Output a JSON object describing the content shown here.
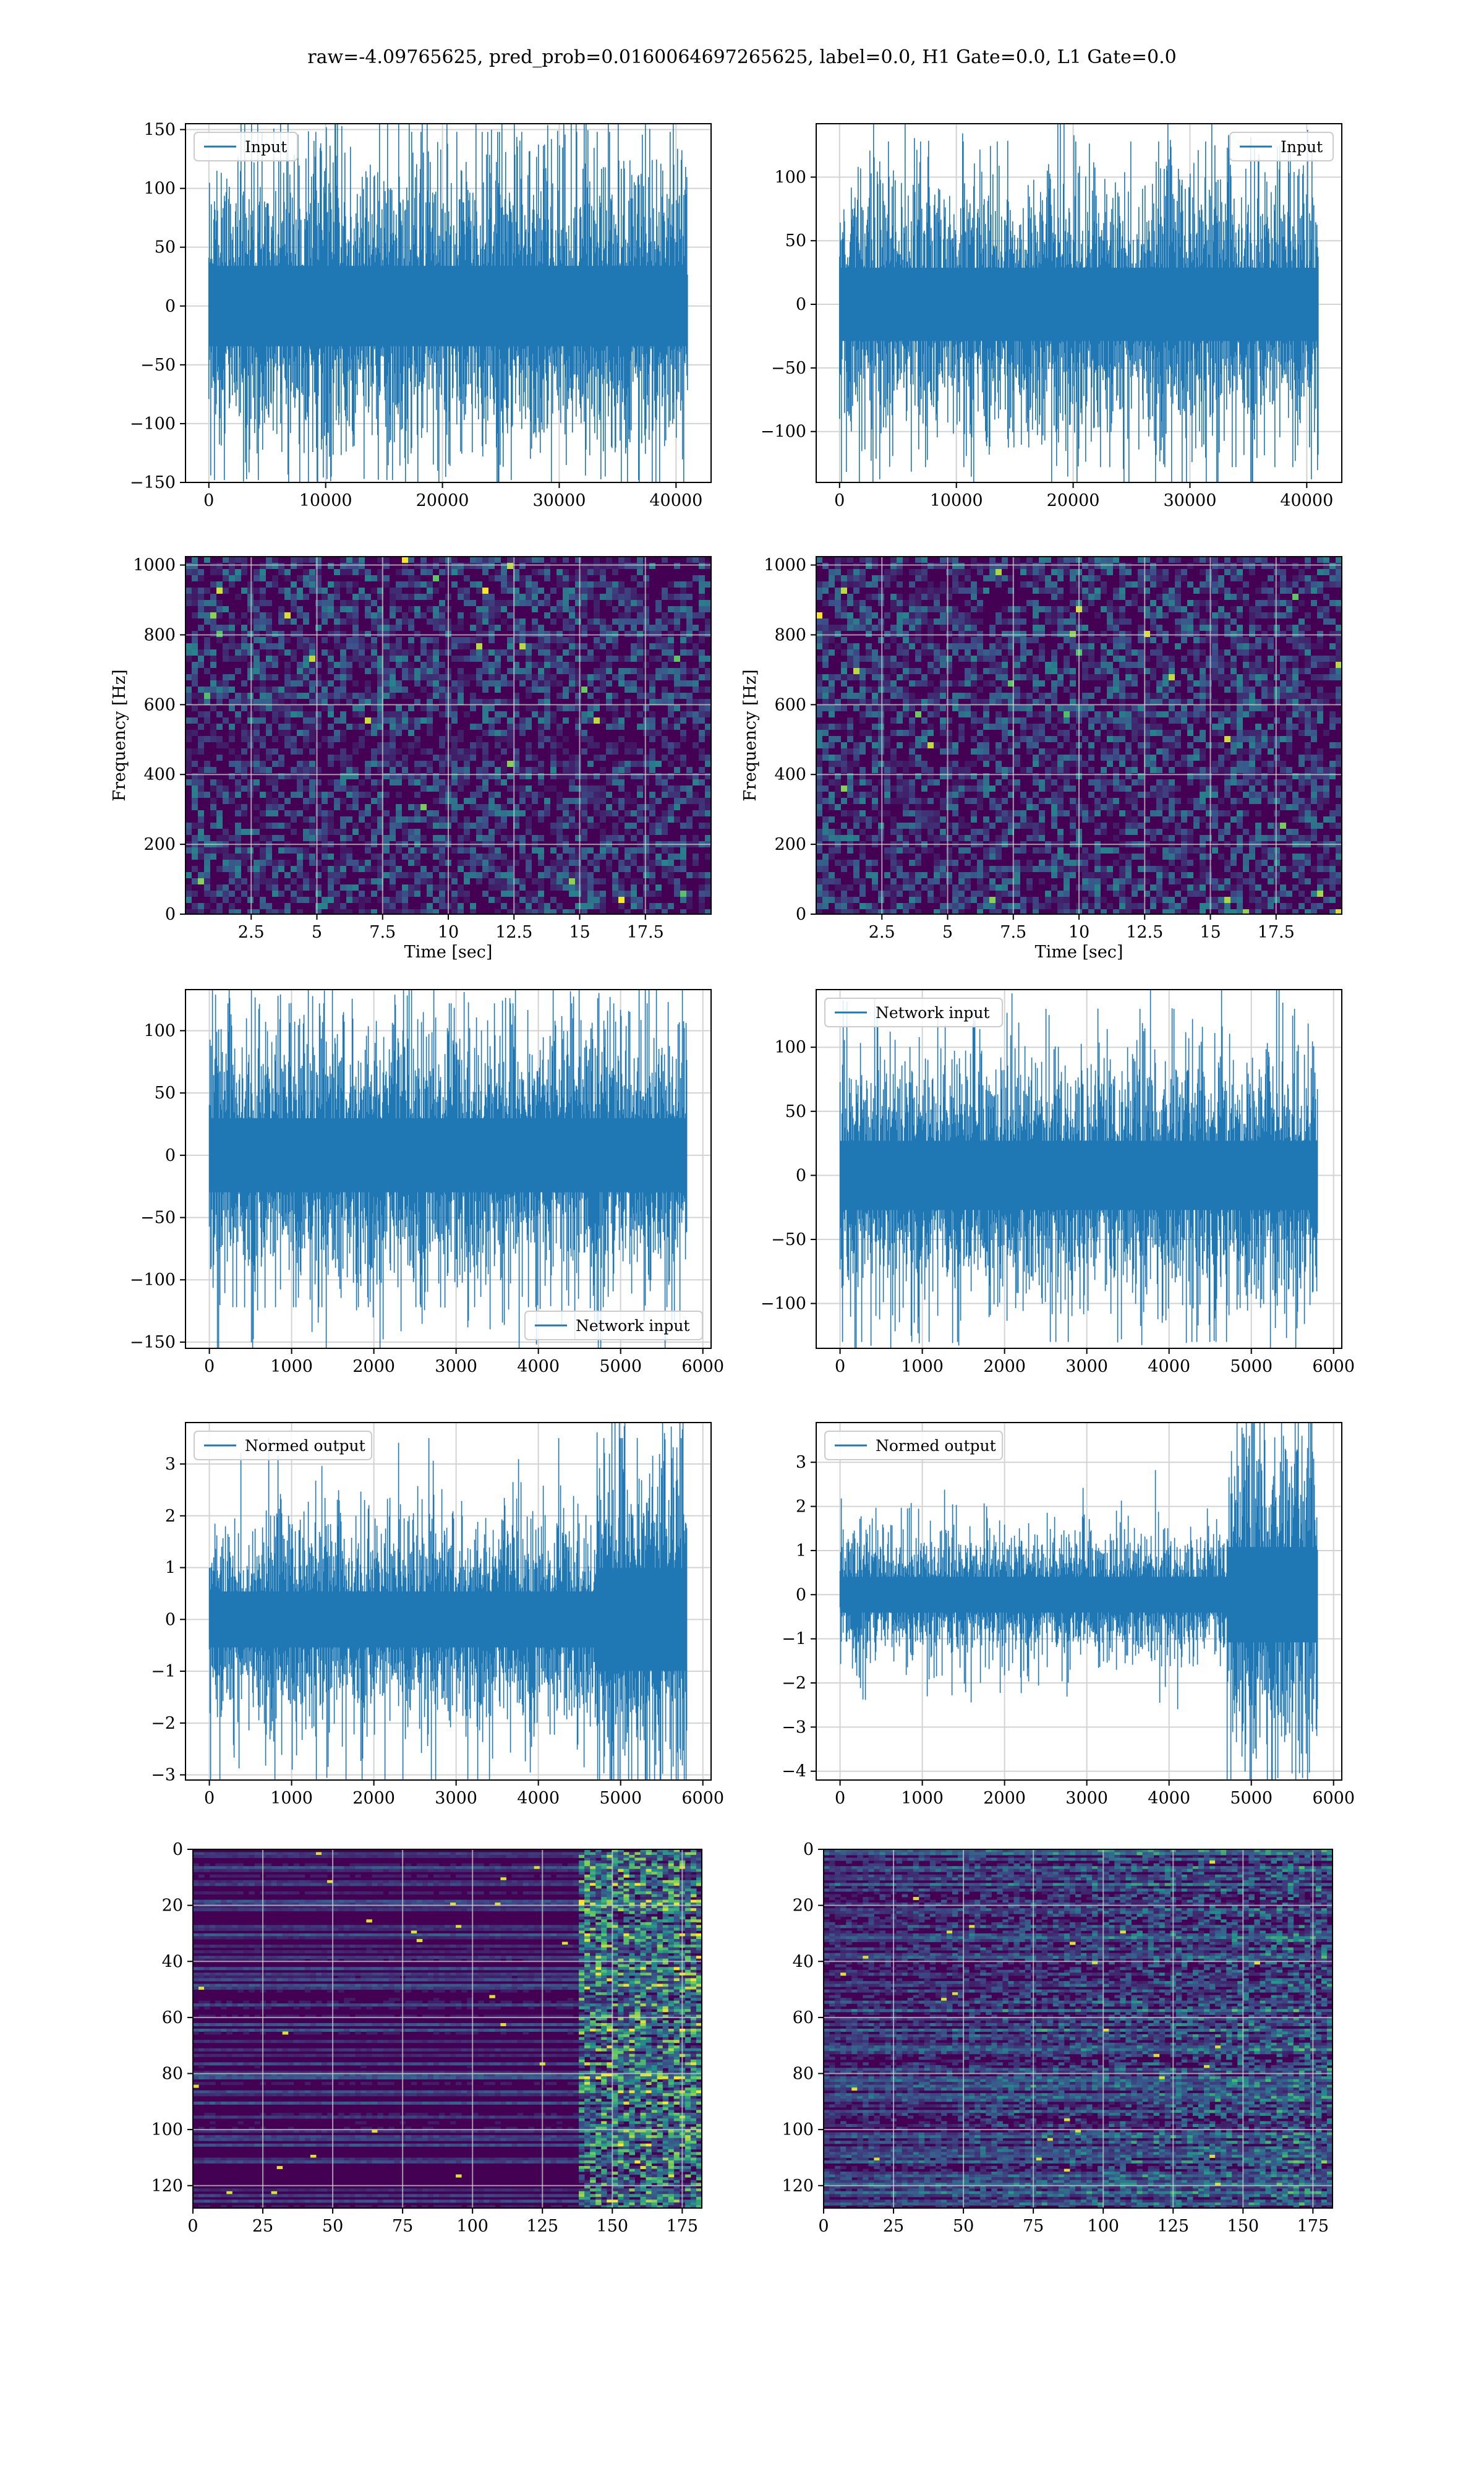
{
  "suptitle": "raw=-4.09765625, pred_prob=0.0160064697265625, label=0.0, H1 Gate=0.0, L1 Gate=0.0",
  "colors": {
    "line": "#1f77b4",
    "grid": "#d3d3d3",
    "viridis_low": "#440154",
    "viridis_high": "#fde725"
  },
  "chart_data": [
    {
      "id": "h1_input",
      "type": "line",
      "signal": "noise",
      "x_range": [
        0,
        40960
      ],
      "amplitude": 38,
      "peak": 148,
      "xlim": [
        -2000,
        43000
      ],
      "ylim": [
        -150,
        155
      ],
      "xticks": [
        0,
        10000,
        20000,
        30000,
        40000
      ],
      "yticks": [
        -150,
        -100,
        -50,
        0,
        50,
        100,
        150
      ],
      "legend": {
        "label": "Input",
        "loc": "upper left"
      },
      "grid": true
    },
    {
      "id": "l1_input",
      "type": "line",
      "signal": "noise",
      "x_range": [
        0,
        40960
      ],
      "amplitude": 32,
      "peak": 128,
      "xlim": [
        -2000,
        43000
      ],
      "ylim": [
        -140,
        142
      ],
      "xticks": [
        0,
        10000,
        20000,
        30000,
        40000
      ],
      "yticks": [
        -100,
        -50,
        0,
        50,
        100
      ],
      "legend": {
        "label": "Input",
        "loc": "upper right"
      },
      "grid": true
    },
    {
      "id": "h1_spectrogram",
      "type": "heatmap",
      "extent_x": [
        0,
        20
      ],
      "extent_y": [
        0,
        1024
      ],
      "xlim": [
        0,
        20
      ],
      "ylim": [
        0,
        1024
      ],
      "xticks": [
        2.5,
        5.0,
        7.5,
        10.0,
        12.5,
        15.0,
        17.5
      ],
      "yticks": [
        0,
        200,
        400,
        600,
        800,
        1000
      ],
      "xlabel": "Time [sec]",
      "ylabel": "Frequency [Hz]",
      "grid": true
    },
    {
      "id": "l1_spectrogram",
      "type": "heatmap",
      "extent_x": [
        0,
        20
      ],
      "extent_y": [
        0,
        1024
      ],
      "xlim": [
        0,
        20
      ],
      "ylim": [
        0,
        1024
      ],
      "xticks": [
        2.5,
        5.0,
        7.5,
        10.0,
        12.5,
        15.0,
        17.5
      ],
      "yticks": [
        0,
        200,
        400,
        600,
        800,
        1000
      ],
      "xlabel": "Time [sec]",
      "ylabel": "Frequency [Hz]",
      "grid": true
    },
    {
      "id": "h1_network_input",
      "type": "line",
      "signal": "noise",
      "x_range": [
        0,
        5800
      ],
      "amplitude": 33,
      "peak": 122,
      "xlim": [
        -290,
        6100
      ],
      "ylim": [
        -155,
        133
      ],
      "xticks": [
        0,
        1000,
        2000,
        3000,
        4000,
        5000,
        6000
      ],
      "yticks": [
        -150,
        -100,
        -50,
        0,
        50,
        100
      ],
      "legend": {
        "label": "Network input",
        "loc": "lower right"
      },
      "grid": true
    },
    {
      "id": "l1_network_input",
      "type": "line",
      "signal": "noise",
      "x_range": [
        0,
        5800
      ],
      "amplitude": 30,
      "peak": 130,
      "xlim": [
        -290,
        6100
      ],
      "ylim": [
        -135,
        145
      ],
      "xticks": [
        0,
        1000,
        2000,
        3000,
        4000,
        5000,
        6000
      ],
      "yticks": [
        -100,
        -50,
        0,
        50,
        100
      ],
      "legend": {
        "label": "Network input",
        "loc": "upper left"
      },
      "grid": true
    },
    {
      "id": "h1_normed_output",
      "type": "line",
      "signal": "noise_burst",
      "x_range": [
        0,
        5800
      ],
      "amplitude": 0.6,
      "burst_start": 4700,
      "burst_amplitude": 1.1,
      "peak": 3.5,
      "xlim": [
        -290,
        6100
      ],
      "ylim": [
        -3.1,
        3.8
      ],
      "xticks": [
        0,
        1000,
        2000,
        3000,
        4000,
        5000,
        6000
      ],
      "yticks": [
        -3,
        -2,
        -1,
        0,
        1,
        2,
        3
      ],
      "legend": {
        "label": "Normed output",
        "loc": "upper left"
      },
      "grid": true
    },
    {
      "id": "l1_normed_output",
      "type": "line",
      "signal": "noise_burst",
      "x_range": [
        0,
        5800
      ],
      "amplitude": 0.45,
      "burst_start": 4700,
      "burst_amplitude": 1.2,
      "peak": 3.6,
      "xlim": [
        -290,
        6100
      ],
      "ylim": [
        -4.2,
        3.9
      ],
      "xticks": [
        0,
        1000,
        2000,
        3000,
        4000,
        5000,
        6000
      ],
      "yticks": [
        -4,
        -3,
        -2,
        -1,
        0,
        1,
        2,
        3
      ],
      "legend": {
        "label": "Normed output",
        "loc": "upper left"
      },
      "grid": true
    },
    {
      "id": "h1_feature_map",
      "type": "heatmap",
      "extent_x": [
        0,
        182
      ],
      "extent_y": [
        0,
        128
      ],
      "y_inverted": true,
      "xlim": [
        0,
        182
      ],
      "ylim": [
        128,
        0
      ],
      "xticks": [
        0,
        25,
        50,
        75,
        100,
        125,
        150,
        175
      ],
      "yticks": [
        0,
        20,
        40,
        60,
        80,
        100,
        120
      ],
      "grid": true
    },
    {
      "id": "l1_feature_map",
      "type": "heatmap",
      "extent_x": [
        0,
        182
      ],
      "extent_y": [
        0,
        128
      ],
      "y_inverted": true,
      "xlim": [
        0,
        182
      ],
      "ylim": [
        128,
        0
      ],
      "xticks": [
        0,
        25,
        50,
        75,
        100,
        125,
        150,
        175
      ],
      "yticks": [
        0,
        20,
        40,
        60,
        80,
        100,
        120
      ],
      "grid": true
    }
  ]
}
